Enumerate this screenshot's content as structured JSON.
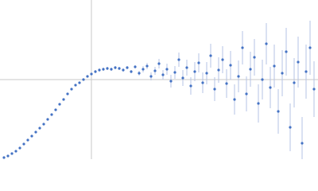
{
  "chart_data": {
    "type": "scatter",
    "x": [
      5,
      10,
      15,
      20,
      25,
      30,
      35,
      40,
      45,
      50,
      55,
      60,
      65,
      70,
      75,
      80,
      85,
      90,
      95,
      100,
      105,
      110,
      115,
      120,
      125,
      130,
      135,
      140,
      145,
      150,
      155,
      160,
      165,
      170,
      175,
      180,
      185,
      190,
      195,
      200,
      205,
      210,
      215,
      220,
      225,
      230,
      235,
      240,
      245,
      250,
      255,
      260,
      265,
      270,
      275,
      280,
      285,
      290,
      295,
      300,
      305,
      310,
      315,
      320,
      325,
      330,
      335,
      340,
      345,
      350,
      355,
      360,
      365,
      370,
      375,
      380,
      385,
      390,
      395
    ],
    "values": [
      2,
      4,
      7,
      10,
      14,
      19,
      24,
      29,
      34,
      39,
      44,
      50,
      56,
      62,
      69,
      75,
      82,
      88,
      93,
      96,
      100,
      104,
      107,
      110,
      112,
      113,
      114,
      113,
      115,
      114,
      112,
      115,
      110,
      116,
      108,
      113,
      117,
      104,
      111,
      120,
      106,
      113,
      98,
      109,
      125,
      102,
      115,
      92,
      110,
      121,
      96,
      108,
      130,
      88,
      112,
      125,
      95,
      118,
      75,
      104,
      140,
      82,
      113,
      128,
      70,
      100,
      145,
      90,
      117,
      60,
      108,
      135,
      40,
      96,
      122,
      20,
      110,
      140,
      88
    ],
    "errors": [
      1,
      1,
      1,
      1,
      1,
      1,
      1,
      1,
      1,
      1,
      1,
      1,
      1,
      1,
      1,
      1,
      1,
      1,
      1,
      1,
      1,
      1,
      1,
      2,
      2,
      2,
      2,
      2,
      2,
      2,
      2,
      2,
      2,
      2,
      3,
      4,
      4,
      5,
      5,
      6,
      6,
      7,
      8,
      8,
      9,
      10,
      10,
      11,
      12,
      12,
      13,
      14,
      15,
      15,
      16,
      17,
      18,
      18,
      19,
      20,
      21,
      22,
      22,
      23,
      24,
      25,
      26,
      26,
      27,
      28,
      29,
      30,
      30,
      31,
      32,
      33,
      34,
      34,
      35
    ],
    "color": "#4472c4",
    "error_color": "#b4c3e6",
    "xlim": [
      0,
      400
    ],
    "ylim": [
      0,
      200
    ],
    "reference_lines": {
      "x": 115,
      "y": 100,
      "color": "#c8c8c8"
    }
  }
}
